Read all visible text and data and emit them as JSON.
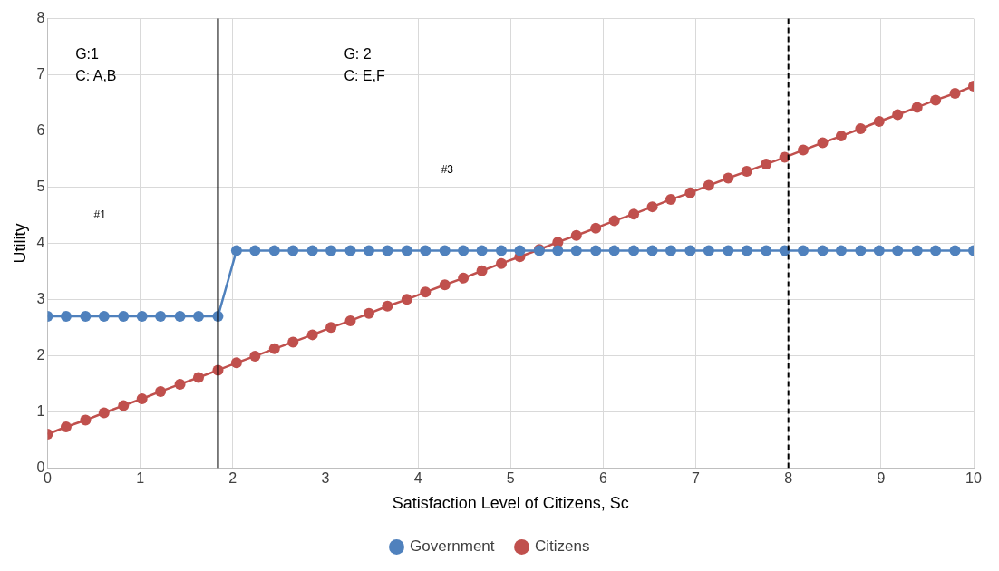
{
  "chart_data": {
    "type": "line",
    "xlabel": "Satisfaction Level of Citizens, Sc",
    "ylabel": "Utility",
    "x": [
      0,
      0.2,
      0.41,
      0.61,
      0.82,
      1.02,
      1.22,
      1.43,
      1.63,
      1.84,
      2.04,
      2.24,
      2.45,
      2.65,
      2.86,
      3.06,
      3.27,
      3.47,
      3.67,
      3.88,
      4.08,
      4.29,
      4.49,
      4.69,
      4.9,
      5.1,
      5.31,
      5.51,
      5.71,
      5.92,
      6.12,
      6.33,
      6.53,
      6.73,
      6.94,
      7.14,
      7.35,
      7.55,
      7.76,
      7.96,
      8.16,
      8.37,
      8.57,
      8.78,
      8.98,
      9.18,
      9.39,
      9.59,
      9.8,
      10
    ],
    "series": [
      {
        "name": "Government",
        "color": "#4f81bd",
        "values": [
          2.7,
          2.7,
          2.7,
          2.7,
          2.7,
          2.7,
          2.7,
          2.7,
          2.7,
          2.7,
          3.87,
          3.87,
          3.87,
          3.87,
          3.87,
          3.87,
          3.87,
          3.87,
          3.87,
          3.87,
          3.87,
          3.87,
          3.87,
          3.87,
          3.87,
          3.87,
          3.87,
          3.87,
          3.87,
          3.87,
          3.87,
          3.87,
          3.87,
          3.87,
          3.87,
          3.87,
          3.87,
          3.87,
          3.87,
          3.87,
          3.87,
          3.87,
          3.87,
          3.87,
          3.87,
          3.87,
          3.87,
          3.87,
          3.87,
          3.87
        ]
      },
      {
        "name": "Citizens",
        "color": "#c0504d",
        "values": [
          0.6,
          0.73,
          0.85,
          0.98,
          1.11,
          1.23,
          1.36,
          1.49,
          1.61,
          1.74,
          1.87,
          1.99,
          2.12,
          2.24,
          2.37,
          2.5,
          2.62,
          2.75,
          2.88,
          3.0,
          3.13,
          3.26,
          3.38,
          3.51,
          3.64,
          3.76,
          3.89,
          4.02,
          4.14,
          4.27,
          4.4,
          4.52,
          4.65,
          4.78,
          4.9,
          5.03,
          5.16,
          5.28,
          5.41,
          5.53,
          5.66,
          5.79,
          5.91,
          6.04,
          6.17,
          6.29,
          6.42,
          6.55,
          6.67,
          6.8
        ]
      }
    ],
    "xlim": [
      0,
      10
    ],
    "xticks": [
      0,
      1,
      2,
      3,
      4,
      5,
      6,
      7,
      8,
      9,
      10
    ],
    "ylim": [
      0,
      8
    ],
    "yticks": [
      0,
      1,
      2,
      3,
      4,
      5,
      6,
      7,
      8
    ],
    "ref_lines": [
      {
        "axis": "x",
        "value": 1.84,
        "color": "#000000",
        "line_style": "solid"
      },
      {
        "axis": "x",
        "value": 8,
        "color": "#000000",
        "line_style": "dashed"
      }
    ],
    "annotations": [
      "G:1\nC: A,B",
      "#1",
      "G: 2\nC: E,F",
      "#3"
    ],
    "grid": true,
    "legend": "bottom",
    "marker": "circle",
    "line_style": "solid"
  }
}
